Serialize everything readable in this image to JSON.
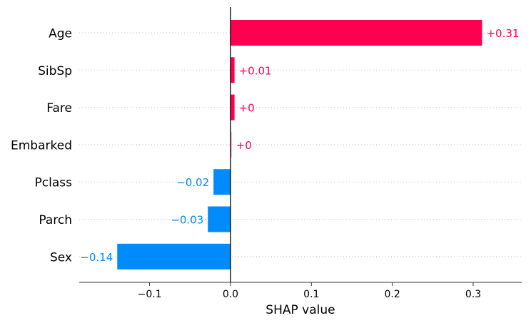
{
  "chart_data": {
    "type": "bar",
    "orientation": "horizontal",
    "categories": [
      "Age",
      "SibSp",
      "Fare",
      "Embarked",
      "Pclass",
      "Parch",
      "Sex"
    ],
    "values": [
      0.311,
      0.005,
      0.005,
      0.0015,
      -0.021,
      -0.028,
      -0.14
    ],
    "value_labels": [
      "+0.31",
      "+0.01",
      "+0",
      "+0",
      "−0.02",
      "−0.03",
      "−0.14"
    ],
    "xlabel": "SHAP value",
    "xlim": [
      -0.187,
      0.36
    ],
    "xticks": [
      -0.1,
      0.0,
      0.1,
      0.2,
      0.3
    ],
    "xtick_labels": [
      "−0.1",
      "0.0",
      "0.1",
      "0.2",
      "0.3"
    ],
    "colors": {
      "positive": "#ff0051",
      "negative": "#008bfb",
      "baseline": "#000000",
      "gridline": "#cccccc"
    },
    "grid": "dotted horizontal guide lines per row"
  }
}
